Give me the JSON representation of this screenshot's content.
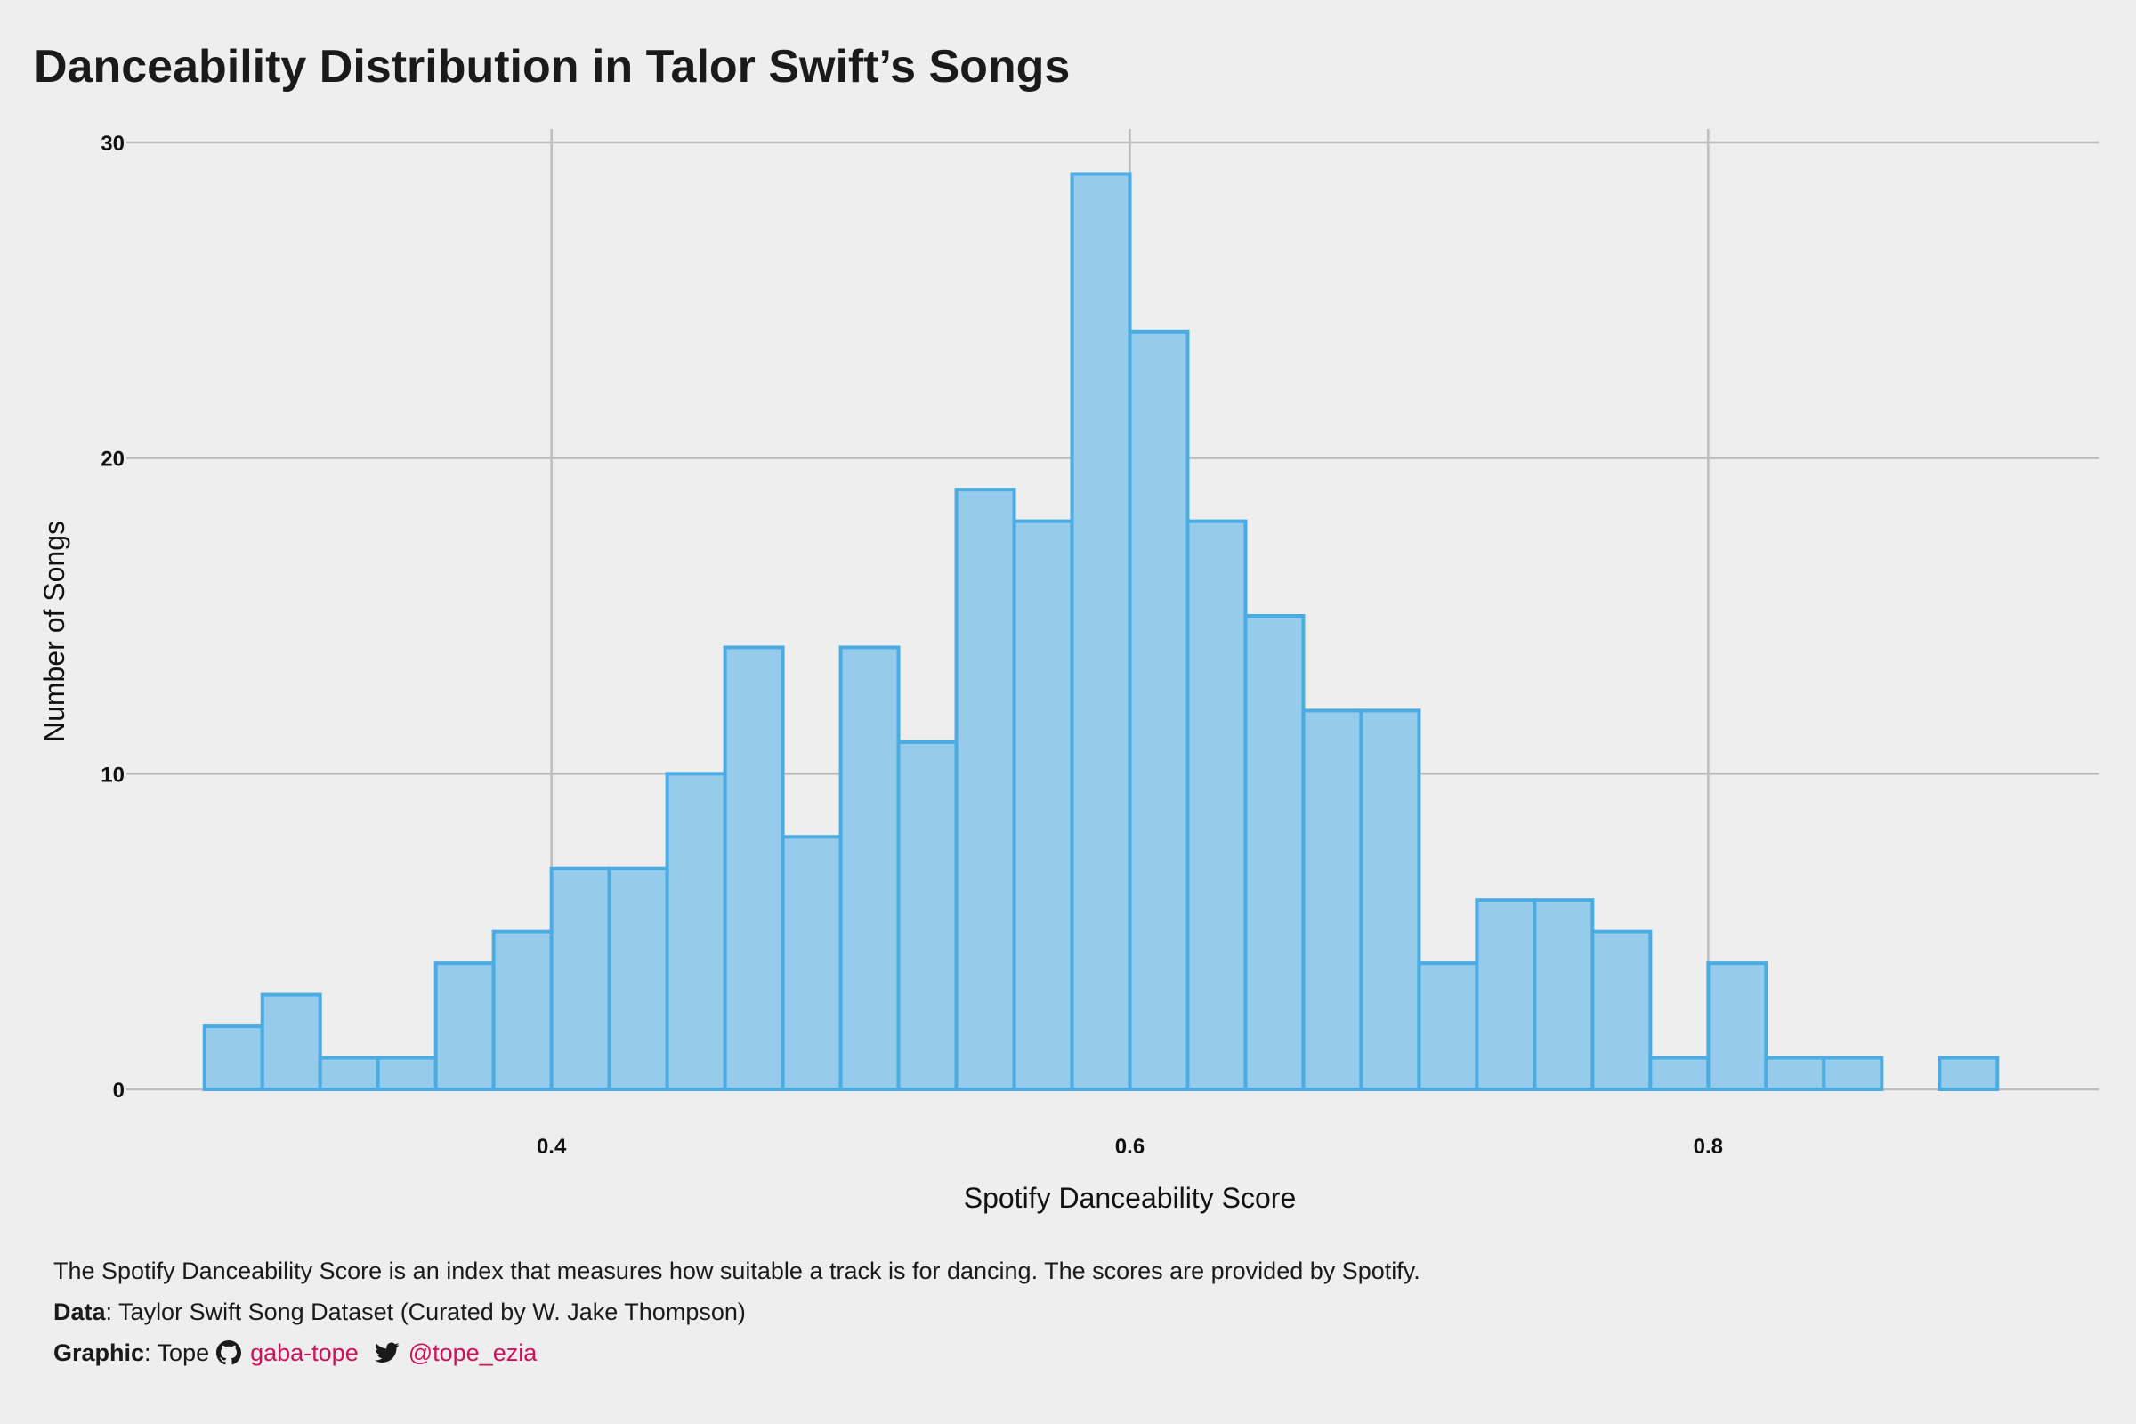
{
  "title": "Danceability Distribution in Talor Swift’s Songs",
  "chart_data": {
    "type": "bar",
    "subtype": "histogram",
    "bin_width": 0.02,
    "bins": [
      {
        "x0": 0.28,
        "x1": 0.3,
        "count": 2
      },
      {
        "x0": 0.3,
        "x1": 0.32,
        "count": 3
      },
      {
        "x0": 0.32,
        "x1": 0.34,
        "count": 1
      },
      {
        "x0": 0.34,
        "x1": 0.36,
        "count": 1
      },
      {
        "x0": 0.36,
        "x1": 0.38,
        "count": 4
      },
      {
        "x0": 0.38,
        "x1": 0.4,
        "count": 5
      },
      {
        "x0": 0.4,
        "x1": 0.42,
        "count": 7
      },
      {
        "x0": 0.42,
        "x1": 0.44,
        "count": 7
      },
      {
        "x0": 0.44,
        "x1": 0.46,
        "count": 10
      },
      {
        "x0": 0.46,
        "x1": 0.48,
        "count": 14
      },
      {
        "x0": 0.48,
        "x1": 0.5,
        "count": 8
      },
      {
        "x0": 0.5,
        "x1": 0.52,
        "count": 14
      },
      {
        "x0": 0.52,
        "x1": 0.54,
        "count": 11
      },
      {
        "x0": 0.54,
        "x1": 0.56,
        "count": 19
      },
      {
        "x0": 0.56,
        "x1": 0.58,
        "count": 18
      },
      {
        "x0": 0.58,
        "x1": 0.6,
        "count": 29
      },
      {
        "x0": 0.6,
        "x1": 0.62,
        "count": 24
      },
      {
        "x0": 0.62,
        "x1": 0.64,
        "count": 18
      },
      {
        "x0": 0.64,
        "x1": 0.66,
        "count": 15
      },
      {
        "x0": 0.66,
        "x1": 0.68,
        "count": 12
      },
      {
        "x0": 0.68,
        "x1": 0.7,
        "count": 12
      },
      {
        "x0": 0.7,
        "x1": 0.72,
        "count": 4
      },
      {
        "x0": 0.72,
        "x1": 0.74,
        "count": 6
      },
      {
        "x0": 0.74,
        "x1": 0.76,
        "count": 6
      },
      {
        "x0": 0.76,
        "x1": 0.78,
        "count": 5
      },
      {
        "x0": 0.78,
        "x1": 0.8,
        "count": 1
      },
      {
        "x0": 0.8,
        "x1": 0.82,
        "count": 4
      },
      {
        "x0": 0.82,
        "x1": 0.84,
        "count": 1
      },
      {
        "x0": 0.84,
        "x1": 0.86,
        "count": 1
      },
      {
        "x0": 0.86,
        "x1": 0.88,
        "count": 0
      },
      {
        "x0": 0.88,
        "x1": 0.9,
        "count": 1
      }
    ],
    "xlabel": "Spotify Danceability Score",
    "ylabel": "Number of Songs",
    "xlim": [
      0.253,
      0.935
    ],
    "ylim": [
      0,
      30
    ],
    "xticks": [
      0.4,
      0.6,
      0.8
    ],
    "xtick_labels": [
      "0.4",
      "0.6",
      "0.8"
    ],
    "yticks": [
      0,
      10,
      20,
      30
    ],
    "ytick_labels": [
      "0",
      "10",
      "20",
      "30"
    ],
    "grid": true,
    "bar_fill": "#97cbeb",
    "bar_stroke": "#4aace2"
  },
  "caption": {
    "description": "The Spotify Danceability Score is an index that measures how suitable a track is for dancing. The scores are provided by Spotify.",
    "data_label": "Data",
    "data_text": ": Taylor Swift Song Dataset (Curated by W. Jake Thompson)",
    "graphic_label": "Graphic",
    "graphic_text": ": Tope",
    "github_icon": "github-icon",
    "github_handle": "gaba-tope",
    "twitter_icon": "twitter-icon",
    "twitter_handle": "@tope_ezia",
    "link_color": "#d0105a"
  },
  "background_color": "#eeeeee"
}
